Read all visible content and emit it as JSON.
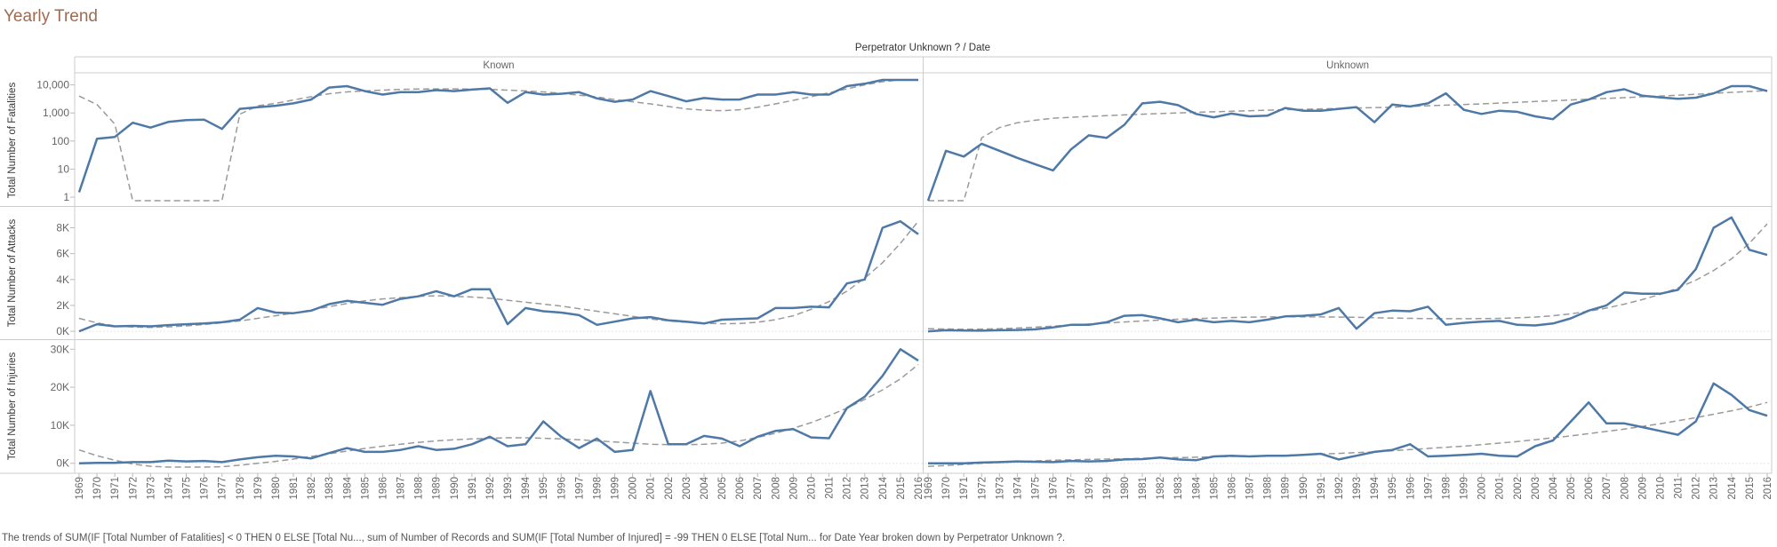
{
  "page": {
    "title": "Yearly Trend",
    "caption": "The trends of SUM(IF [Total Number of Fatalities] < 0 THEN 0 ELSE [Total Nu..., sum of Number of Records and SUM(IF [Total Number of Injured] = -99 THEN 0 ELSE [Total Num... for Date Year broken down by Perpetrator Unknown ?."
  },
  "chart_data": {
    "type": "line",
    "header": "Perpetrator Unknown ? / Date",
    "columns": [
      "Known",
      "Unknown"
    ],
    "years": [
      "1969",
      "1970",
      "1971",
      "1972",
      "1973",
      "1974",
      "1975",
      "1976",
      "1977",
      "1978",
      "1979",
      "1980",
      "1981",
      "1982",
      "1983",
      "1984",
      "1985",
      "1986",
      "1987",
      "1988",
      "1989",
      "1990",
      "1991",
      "1992",
      "1993",
      "1994",
      "1995",
      "1996",
      "1997",
      "1998",
      "1999",
      "2000",
      "2001",
      "2002",
      "2003",
      "2004",
      "2005",
      "2006",
      "2007",
      "2008",
      "2009",
      "2010",
      "2011",
      "2012",
      "2013",
      "2014",
      "2015",
      "2016"
    ],
    "colors": {
      "series": "#4e79a7",
      "trend": "#9a9a9a",
      "axis": "#666666",
      "grid": "#e6e6e6",
      "border": "#cccccc"
    },
    "rows": [
      {
        "label": "Total Number of Fatalities",
        "scale": "log",
        "ylim": [
          0.75,
          15000
        ],
        "ticks": [
          1,
          10,
          100,
          1000,
          10000
        ],
        "tick_labels": [
          "1",
          "10",
          "100",
          "1,000",
          "10,000"
        ],
        "panels": [
          {
            "values": [
              1.5,
              120,
              140,
              450,
              300,
              480,
              560,
              580,
              270,
              1400,
              1600,
              1800,
              2200,
              3000,
              8000,
              9000,
              6000,
              4500,
              5500,
              5500,
              6500,
              6000,
              6800,
              7500,
              2300,
              5500,
              4500,
              4800,
              5500,
              3300,
              2500,
              3000,
              6000,
              4000,
              2600,
              3400,
              3000,
              3000,
              4500,
              4500,
              5500,
              4500,
              4500,
              9000,
              11000,
              15000,
              18000,
              20000
            ],
            "trend": [
              4000,
              2000,
              400,
              0.5,
              0.5,
              0.5,
              0.5,
              0.5,
              0.5,
              900,
              1800,
              2200,
              2900,
              3800,
              4800,
              5600,
              6100,
              6500,
              6900,
              7100,
              7200,
              7200,
              7100,
              6900,
              6500,
              6100,
              5600,
              5000,
              4300,
              3700,
              3000,
              2500,
              2100,
              1700,
              1400,
              1250,
              1200,
              1300,
              1600,
              2100,
              2800,
              3800,
              5200,
              7200,
              10000,
              13000,
              17000,
              20000
            ]
          },
          {
            "values": [
              0.5,
              45,
              28,
              80,
              45,
              25,
              15,
              9,
              50,
              160,
              130,
              380,
              2200,
              2500,
              1900,
              920,
              700,
              950,
              760,
              800,
              1500,
              1200,
              1200,
              1400,
              1600,
              470,
              2000,
              1700,
              2200,
              5000,
              1300,
              920,
              1200,
              1100,
              760,
              600,
              2000,
              3000,
              5500,
              7000,
              4100,
              3600,
              3200,
              3500,
              5000,
              9000,
              9000,
              6000
            ],
            "trend": [
              0.5,
              0.5,
              0.5,
              130,
              300,
              450,
              550,
              650,
              700,
              750,
              800,
              850,
              900,
              950,
              1000,
              1050,
              1100,
              1150,
              1200,
              1250,
              1300,
              1350,
              1400,
              1450,
              1500,
              1550,
              1600,
              1700,
              1800,
              1900,
              2000,
              2100,
              2250,
              2400,
              2550,
              2700,
              2900,
              3100,
              3300,
              3500,
              3750,
              4000,
              4300,
              4600,
              5000,
              5400,
              5800,
              6200
            ]
          }
        ]
      },
      {
        "label": "Total Number of Attacks",
        "scale": "linear",
        "ylim": [
          -200,
          9200
        ],
        "ticks": [
          0,
          2000,
          4000,
          6000,
          8000
        ],
        "tick_labels": [
          "0K",
          "2K",
          "4K",
          "6K",
          "8K"
        ],
        "panels": [
          {
            "values": [
              0,
              550,
              380,
              420,
              380,
              480,
              550,
              600,
              700,
              900,
              1800,
              1450,
              1400,
              1600,
              2100,
              2350,
              2200,
              2050,
              2500,
              2700,
              3100,
              2700,
              3250,
              3250,
              550,
              1800,
              1550,
              1450,
              1250,
              500,
              750,
              1000,
              1100,
              850,
              750,
              600,
              900,
              950,
              1000,
              1800,
              1800,
              1900,
              1850,
              3700,
              4000,
              8000,
              8500,
              7500
            ],
            "trend": [
              1000,
              650,
              420,
              330,
              300,
              340,
              420,
              530,
              660,
              800,
              1000,
              1200,
              1400,
              1650,
              1900,
              2150,
              2350,
              2500,
              2600,
              2700,
              2750,
              2700,
              2650,
              2550,
              2400,
              2250,
              2100,
              1950,
              1750,
              1550,
              1350,
              1150,
              950,
              800,
              700,
              620,
              580,
              600,
              700,
              900,
              1200,
              1700,
              2300,
              3100,
              4100,
              5300,
              6800,
              8500
            ]
          },
          {
            "values": [
              0,
              80,
              60,
              50,
              80,
              100,
              150,
              300,
              500,
              500,
              700,
              1200,
              1250,
              1000,
              700,
              900,
              700,
              800,
              700,
              900,
              1150,
              1200,
              1300,
              1800,
              200,
              1400,
              1600,
              1550,
              1900,
              500,
              650,
              750,
              800,
              500,
              450,
              600,
              1000,
              1600,
              2000,
              3000,
              2900,
              2900,
              3200,
              4800,
              8000,
              8800,
              6300,
              5900
            ],
            "trend": [
              200,
              180,
              160,
              170,
              200,
              250,
              320,
              400,
              480,
              560,
              640,
              720,
              800,
              870,
              930,
              980,
              1020,
              1060,
              1090,
              1110,
              1120,
              1120,
              1110,
              1100,
              1080,
              1050,
              1020,
              1000,
              980,
              970,
              970,
              980,
              1000,
              1040,
              1100,
              1200,
              1350,
              1550,
              1800,
              2100,
              2450,
              2850,
              3350,
              3950,
              4700,
              5600,
              6800,
              8300
            ]
          }
        ]
      },
      {
        "label": "Total Number of Injuries",
        "scale": "linear",
        "ylim": [
          -1000,
          31000
        ],
        "ticks": [
          0,
          10000,
          20000,
          30000
        ],
        "tick_labels": [
          "0K",
          "10K",
          "20K",
          "30K"
        ],
        "panels": [
          {
            "values": [
              0,
              100,
              100,
              300,
              300,
              700,
              500,
              600,
              300,
              1000,
              1600,
              2000,
              1800,
              1300,
              2700,
              4000,
              3000,
              3000,
              3500,
              4500,
              3500,
              3800,
              5000,
              7000,
              4500,
              5000,
              11000,
              7000,
              4000,
              6500,
              3000,
              3500,
              19000,
              5000,
              5000,
              7200,
              6500,
              4500,
              7000,
              8500,
              9000,
              6800,
              6600,
              14500,
              17500,
              23000,
              30000,
              27000
            ],
            "trend": [
              3500,
              2000,
              800,
              -200,
              -800,
              -1200,
              -1300,
              -1200,
              -900,
              -500,
              0,
              500,
              1100,
              1800,
              2500,
              3200,
              3900,
              4500,
              5000,
              5500,
              5900,
              6200,
              6400,
              6600,
              6700,
              6700,
              6600,
              6400,
              6200,
              5900,
              5600,
              5300,
              5000,
              4900,
              4900,
              5000,
              5300,
              5900,
              6800,
              7900,
              9200,
              10700,
              12500,
              14500,
              16800,
              19300,
              22200,
              26000
            ]
          },
          {
            "values": [
              0,
              0,
              0,
              200,
              300,
              500,
              400,
              300,
              600,
              500,
              600,
              1000,
              1100,
              1500,
              1000,
              800,
              1800,
              2000,
              1800,
              2000,
              2000,
              2200,
              2500,
              1000,
              2000,
              3000,
              3500,
              5000,
              1800,
              2000,
              2200,
              2500,
              2000,
              1800,
              4500,
              6000,
              11000,
              16000,
              10500,
              10500,
              9500,
              8500,
              7500,
              11000,
              21000,
              18000,
              14000,
              12500
            ],
            "trend": [
              -800,
              -600,
              -300,
              0,
              200,
              400,
              600,
              800,
              900,
              1000,
              1100,
              1200,
              1300,
              1400,
              1500,
              1600,
              1700,
              1800,
              1900,
              2000,
              2100,
              2250,
              2400,
              2600,
              2800,
              3000,
              3300,
              3600,
              3900,
              4200,
              4500,
              4900,
              5300,
              5700,
              6200,
              6700,
              7200,
              7800,
              8400,
              9000,
              9700,
              10400,
              11200,
              12000,
              12900,
              13800,
              14800,
              16000
            ]
          }
        ]
      }
    ]
  }
}
